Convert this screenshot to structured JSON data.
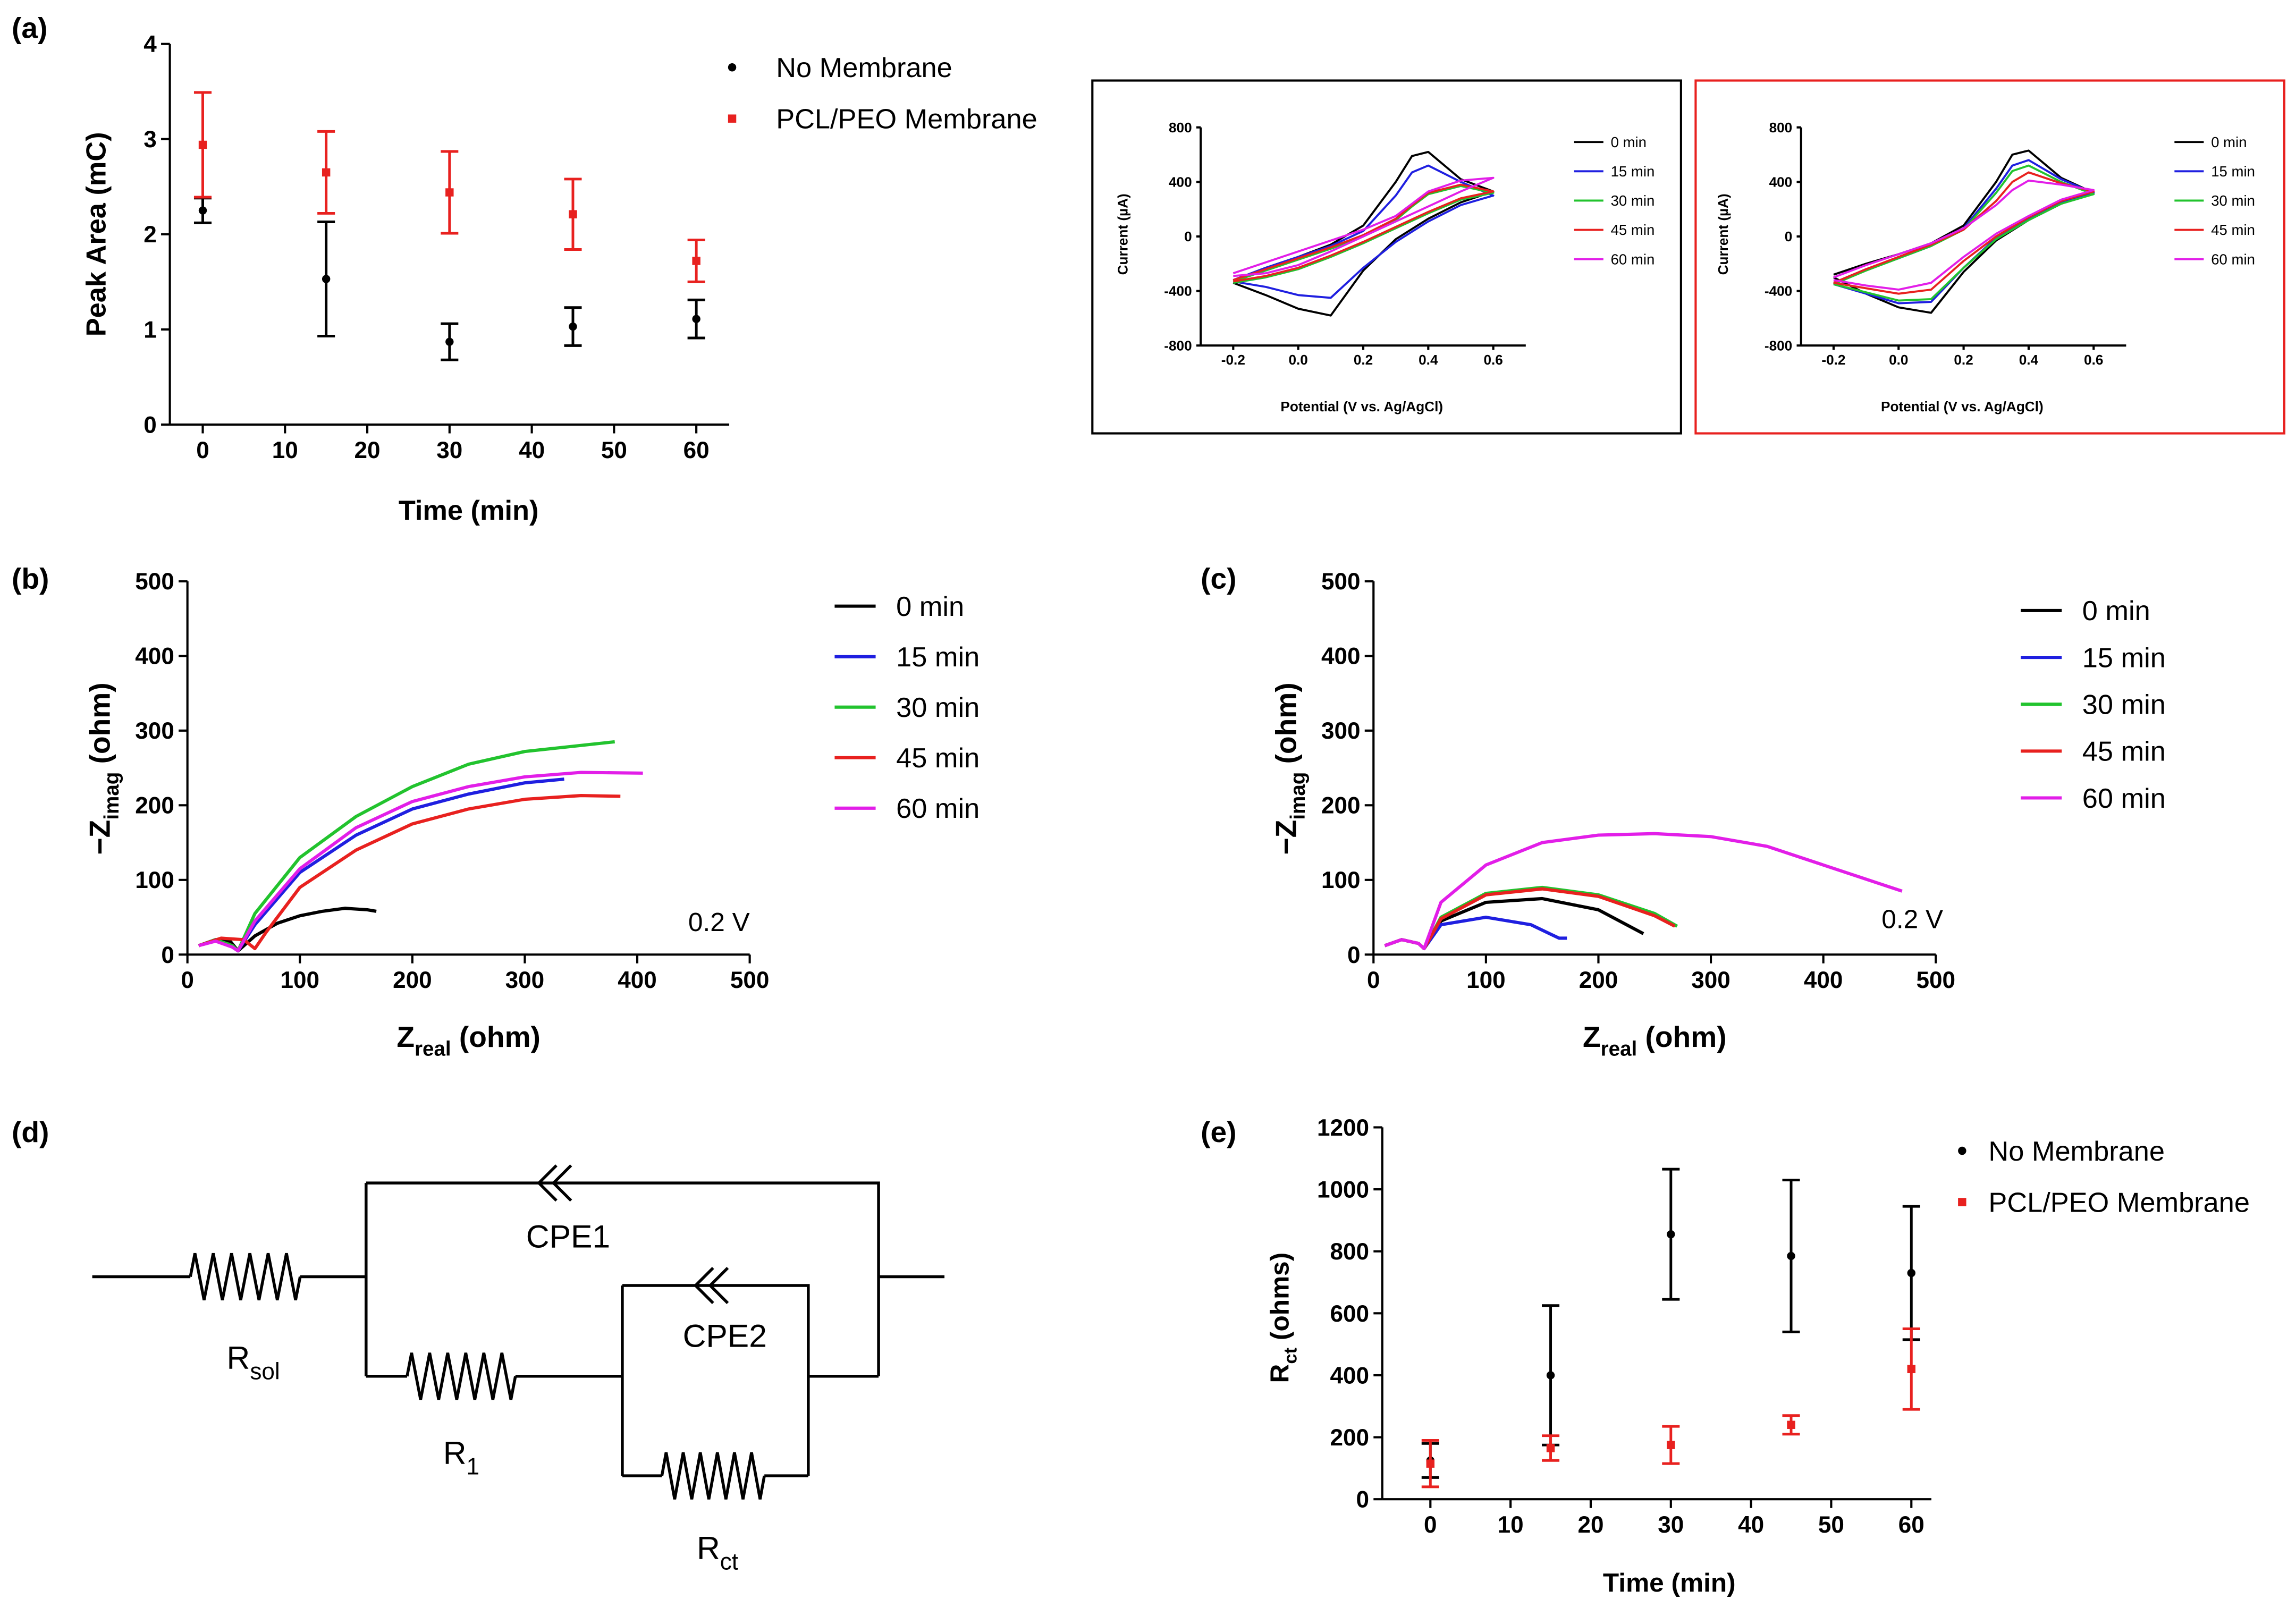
{
  "chart_data": [
    {
      "type": "scatter",
      "panel": "(a)",
      "xlabel": "Time (min)",
      "ylabel": "Peak Area (mC)",
      "x": [
        0,
        15,
        30,
        45,
        60
      ],
      "xlim": [
        -4,
        64
      ],
      "xticks": [
        0,
        10,
        20,
        30,
        40,
        50,
        60
      ],
      "ylim": [
        0,
        4
      ],
      "yticks": [
        0,
        1,
        2,
        3,
        4
      ],
      "series": [
        {
          "name": "No Membrane",
          "color": "#000000",
          "marker": "circle",
          "values": [
            2.25,
            1.53,
            0.87,
            1.03,
            1.11
          ],
          "errors": [
            0.13,
            0.6,
            0.19,
            0.2,
            0.2
          ]
        },
        {
          "name": "PCL/PEO Membrane",
          "color": "#e8211f",
          "marker": "square",
          "values": [
            2.94,
            2.65,
            2.44,
            2.21,
            1.72
          ],
          "errors": [
            0.55,
            0.43,
            0.43,
            0.37,
            0.22
          ]
        }
      ]
    },
    {
      "type": "line",
      "frame_color": "#000000",
      "xlabel": "Potential (V vs. Ag/AgCl)",
      "ylabel": "Current (µA)",
      "x": [
        -0.2,
        -0.1,
        0,
        0.1,
        0.2,
        0.3,
        0.35,
        0.4,
        0.5,
        0.6,
        0.5,
        0.4,
        0.3,
        0.2,
        0.1,
        0,
        -0.1,
        -0.2
      ],
      "xlim": [
        -0.3,
        0.7
      ],
      "xticks": [
        -0.2,
        {
          "value": 0,
          "label": "0.0"
        },
        0.2,
        0.4,
        0.6
      ],
      "ylim": [
        -800,
        800
      ],
      "yticks": [
        -800,
        -400,
        0,
        400,
        800
      ],
      "series": [
        {
          "name": "0 min",
          "color": "#000000",
          "values": [
            -320,
            -230,
            -150,
            -60,
            80,
            400,
            590,
            620,
            420,
            330,
            250,
            130,
            -20,
            -250,
            -580,
            -530,
            -430,
            -340
          ]
        },
        {
          "name": "15 min",
          "color": "#1f1fe0",
          "values": [
            -320,
            -230,
            -150,
            -70,
            40,
            300,
            470,
            520,
            400,
            300,
            230,
            110,
            -40,
            -230,
            -450,
            -430,
            -370,
            -330
          ]
        },
        {
          "name": "30 min",
          "color": "#22c32e",
          "values": [
            -330,
            -250,
            -170,
            -90,
            0,
            120,
            220,
            310,
            370,
            320,
            270,
            170,
            60,
            -50,
            -150,
            -240,
            -300,
            -340
          ]
        },
        {
          "name": "45 min",
          "color": "#e8211f",
          "values": [
            -320,
            -240,
            -160,
            -80,
            10,
            130,
            230,
            320,
            380,
            330,
            280,
            180,
            70,
            -40,
            -140,
            -230,
            -290,
            -330
          ]
        },
        {
          "name": "60 min",
          "color": "#e21ee8",
          "values": [
            -270,
            -190,
            -110,
            -30,
            50,
            150,
            240,
            330,
            410,
            430,
            330,
            220,
            110,
            0,
            -110,
            -210,
            -270,
            -290
          ]
        }
      ]
    },
    {
      "type": "line",
      "frame_color": "#e8211f",
      "xlabel": "Potential (V vs. Ag/AgCl)",
      "ylabel": "Current (µA)",
      "x": [
        -0.2,
        -0.1,
        0,
        0.1,
        0.2,
        0.3,
        0.35,
        0.4,
        0.5,
        0.6,
        0.5,
        0.4,
        0.3,
        0.2,
        0.1,
        0,
        -0.1,
        -0.2
      ],
      "xlim": [
        -0.3,
        0.7
      ],
      "xticks": [
        -0.2,
        {
          "value": 0,
          "label": "0.0"
        },
        0.2,
        0.4,
        0.6
      ],
      "ylim": [
        -800,
        800
      ],
      "yticks": [
        -800,
        -400,
        0,
        400,
        800
      ],
      "series": [
        {
          "name": "0 min",
          "color": "#000000",
          "values": [
            -280,
            -200,
            -130,
            -50,
            80,
            400,
            600,
            630,
            430,
            320,
            240,
            120,
            -30,
            -260,
            -560,
            -520,
            -420,
            -300
          ]
        },
        {
          "name": "15 min",
          "color": "#1f1fe0",
          "values": [
            -340,
            -240,
            -160,
            -70,
            60,
            350,
            520,
            560,
            420,
            320,
            250,
            130,
            -10,
            -230,
            -480,
            -490,
            -420,
            -350
          ]
        },
        {
          "name": "30 min",
          "color": "#22c32e",
          "values": [
            -350,
            -250,
            -160,
            -70,
            50,
            320,
            480,
            520,
            400,
            310,
            240,
            120,
            -20,
            -230,
            -460,
            -470,
            -410,
            -350
          ]
        },
        {
          "name": "45 min",
          "color": "#e8211f",
          "values": [
            -340,
            -240,
            -150,
            -60,
            50,
            260,
            400,
            470,
            390,
            330,
            260,
            140,
            0,
            -180,
            -390,
            -420,
            -380,
            -340
          ]
        },
        {
          "name": "60 min",
          "color": "#e21ee8",
          "values": [
            -300,
            -210,
            -130,
            -50,
            60,
            230,
            340,
            410,
            380,
            340,
            270,
            150,
            20,
            -150,
            -340,
            -390,
            -360,
            -320
          ]
        }
      ]
    },
    {
      "type": "line",
      "panel": "(b)",
      "annotation": "0.2 V",
      "xlabel": [
        "Z",
        "real",
        " (ohm)"
      ],
      "ylabel": [
        "−Z",
        "imag",
        " (ohm)"
      ],
      "xlim": [
        0,
        500
      ],
      "xticks": [
        0,
        100,
        200,
        300,
        400,
        500
      ],
      "ylim": [
        0,
        500
      ],
      "yticks": [
        0,
        100,
        200,
        300,
        400,
        500
      ],
      "series": [
        {
          "name": "0 min",
          "color": "#000000",
          "x": [
            10,
            25,
            38,
            45,
            60,
            80,
            100,
            120,
            140,
            160,
            168
          ],
          "values": [
            12,
            20,
            18,
            5,
            25,
            42,
            52,
            58,
            62,
            60,
            58
          ]
        },
        {
          "name": "15 min",
          "color": "#1f1fe0",
          "x": [
            10,
            25,
            40,
            45,
            60,
            100,
            150,
            200,
            250,
            300,
            335
          ],
          "values": [
            12,
            20,
            10,
            5,
            40,
            110,
            160,
            195,
            215,
            230,
            235
          ]
        },
        {
          "name": "30 min",
          "color": "#22c32e",
          "x": [
            10,
            25,
            40,
            45,
            60,
            100,
            150,
            200,
            250,
            300,
            380
          ],
          "values": [
            12,
            20,
            12,
            5,
            55,
            130,
            185,
            225,
            255,
            272,
            285
          ]
        },
        {
          "name": "45 min",
          "color": "#e8211f",
          "x": [
            10,
            30,
            50,
            60,
            70,
            100,
            150,
            200,
            250,
            300,
            350,
            385
          ],
          "values": [
            12,
            22,
            20,
            8,
            30,
            90,
            140,
            175,
            195,
            208,
            213,
            212
          ]
        },
        {
          "name": "60 min",
          "color": "#e21ee8",
          "x": [
            10,
            25,
            40,
            45,
            60,
            100,
            150,
            200,
            250,
            300,
            350,
            405
          ],
          "values": [
            12,
            18,
            10,
            5,
            45,
            115,
            170,
            205,
            225,
            238,
            244,
            243
          ]
        }
      ]
    },
    {
      "type": "line",
      "panel": "(c)",
      "annotation": "0.2 V",
      "xlabel": [
        "Z",
        "real",
        " (ohm)"
      ],
      "ylabel": [
        "−Z",
        "imag",
        " (ohm)"
      ],
      "xlim": [
        0,
        500
      ],
      "xticks": [
        0,
        100,
        200,
        300,
        400,
        500
      ],
      "ylim": [
        0,
        500
      ],
      "yticks": [
        0,
        100,
        200,
        300,
        400,
        500
      ],
      "series": [
        {
          "name": "0 min",
          "color": "#000000",
          "x": [
            10,
            25,
            40,
            45,
            60,
            100,
            150,
            200,
            240
          ],
          "values": [
            12,
            20,
            15,
            8,
            45,
            70,
            75,
            60,
            28
          ]
        },
        {
          "name": "15 min",
          "color": "#1f1fe0",
          "x": [
            10,
            25,
            40,
            45,
            60,
            100,
            140,
            165,
            172
          ],
          "values": [
            12,
            20,
            15,
            8,
            40,
            50,
            40,
            22,
            22
          ]
        },
        {
          "name": "30 min",
          "color": "#22c32e",
          "x": [
            10,
            25,
            40,
            45,
            60,
            100,
            150,
            200,
            250,
            270
          ],
          "values": [
            12,
            20,
            15,
            8,
            50,
            82,
            90,
            80,
            55,
            38
          ]
        },
        {
          "name": "45 min",
          "color": "#e8211f",
          "x": [
            10,
            25,
            40,
            45,
            60,
            100,
            150,
            200,
            250,
            268
          ],
          "values": [
            12,
            20,
            15,
            8,
            48,
            80,
            88,
            78,
            52,
            38
          ]
        },
        {
          "name": "60 min",
          "color": "#e21ee8",
          "x": [
            10,
            25,
            40,
            45,
            60,
            100,
            150,
            200,
            250,
            300,
            350,
            400,
            470
          ],
          "values": [
            12,
            20,
            15,
            8,
            70,
            120,
            150,
            160,
            162,
            158,
            145,
            120,
            85
          ]
        }
      ]
    },
    {
      "type": "scatter",
      "panel": "(e)",
      "xlabel": "Time (min)",
      "ylabel": [
        "R",
        "ct",
        " (ohms)"
      ],
      "x": [
        0,
        15,
        30,
        45,
        60
      ],
      "xlim": [
        -6,
        62.5
      ],
      "xticks": [
        0,
        10,
        20,
        30,
        40,
        50,
        60
      ],
      "ylim": [
        0,
        1200
      ],
      "yticks": [
        0,
        200,
        400,
        600,
        800,
        1000,
        1200
      ],
      "series": [
        {
          "name": "No Membrane",
          "color": "#000000",
          "marker": "circle",
          "values": [
            125,
            400,
            855,
            785,
            730
          ],
          "errors": [
            55,
            225,
            210,
            245,
            215
          ]
        },
        {
          "name": "PCL/PEO Membrane",
          "color": "#e8211f",
          "marker": "square",
          "values": [
            115,
            165,
            175,
            240,
            420
          ],
          "errors": [
            75,
            40,
            60,
            30,
            130
          ]
        }
      ]
    }
  ],
  "circuit": {
    "panel": "(d)",
    "labels": [
      {
        "main": "CPE1"
      },
      {
        "main": "CPE2"
      },
      {
        "main": "R",
        "sub": "sol"
      },
      {
        "main": "R",
        "sub": "1"
      },
      {
        "main": "R",
        "sub": "ct"
      }
    ]
  }
}
